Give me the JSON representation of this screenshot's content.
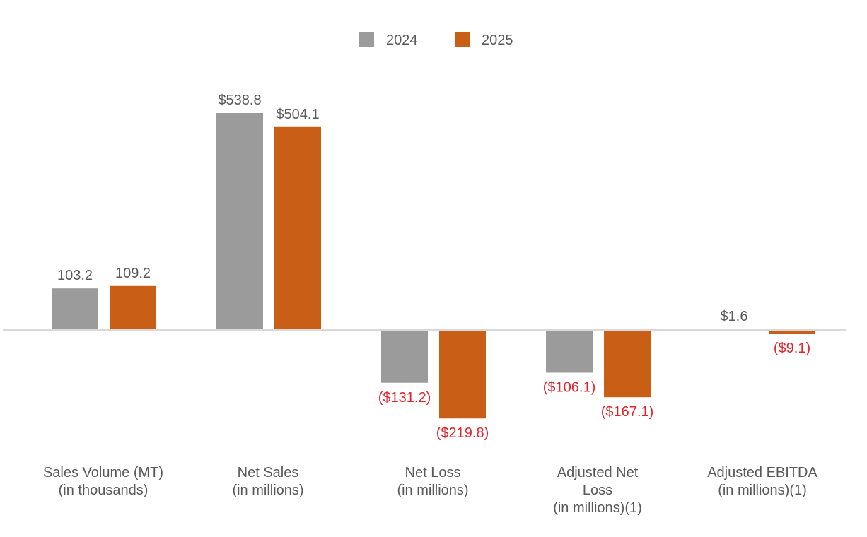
{
  "chart_data": {
    "type": "bar",
    "title": "",
    "xlabel": "",
    "ylabel": "",
    "categories": [
      [
        "Sales Volume (MT)",
        "(in thousands)"
      ],
      [
        "Net Sales",
        "(in millions)"
      ],
      [
        "Net Loss",
        "(in millions)"
      ],
      [
        "Adjusted Net",
        "Loss",
        "(in millions)(1)"
      ],
      [
        "Adjusted EBITDA",
        "(in millions)(1)"
      ]
    ],
    "series": [
      {
        "name": "2024",
        "color": "#9b9b9b",
        "values": [
          103.2,
          538.8,
          -131.2,
          -106.1,
          1.6
        ],
        "labels": [
          "103.2",
          "$538.8",
          "($131.2)",
          "($106.1)",
          "$1.6"
        ]
      },
      {
        "name": "2025",
        "color": "#c95f17",
        "values": [
          109.2,
          504.1,
          -219.8,
          -167.1,
          -9.1
        ],
        "labels": [
          "109.2",
          "$504.1",
          "($219.8)",
          "($167.1)",
          "($9.1)"
        ]
      }
    ],
    "colors": {
      "positive_label": "#595959",
      "negative_label": "#e0242b",
      "axis_line": "#d9d9d9",
      "text": "#595959"
    },
    "legend_position": "top-center",
    "grid": false
  }
}
